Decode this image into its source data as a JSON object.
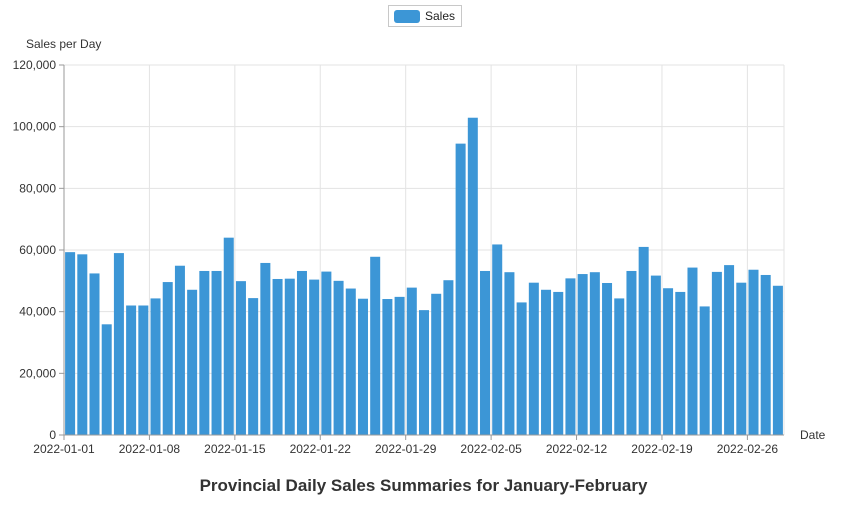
{
  "chart_data": {
    "type": "bar",
    "title": "Provincial Daily Sales Summaries for January-February",
    "xlabel": "Date",
    "ylabel": "Sales per Day",
    "ylim": [
      0,
      120000
    ],
    "yticks": [
      "0",
      "20,000",
      "40,000",
      "60,000",
      "80,000",
      "100,000",
      "120,000"
    ],
    "xticks": [
      "2022-01-01",
      "2022-01-08",
      "2022-01-15",
      "2022-01-22",
      "2022-01-29",
      "2022-02-05",
      "2022-02-12",
      "2022-02-19",
      "2022-02-26"
    ],
    "grid": true,
    "legend_position": "top-center",
    "bar_color": "#3c96d6",
    "categories": [
      "2022-01-01",
      "2022-01-02",
      "2022-01-03",
      "2022-01-04",
      "2022-01-05",
      "2022-01-06",
      "2022-01-07",
      "2022-01-08",
      "2022-01-09",
      "2022-01-10",
      "2022-01-11",
      "2022-01-12",
      "2022-01-13",
      "2022-01-14",
      "2022-01-15",
      "2022-01-16",
      "2022-01-17",
      "2022-01-18",
      "2022-01-19",
      "2022-01-20",
      "2022-01-21",
      "2022-01-22",
      "2022-01-23",
      "2022-01-24",
      "2022-01-25",
      "2022-01-26",
      "2022-01-27",
      "2022-01-28",
      "2022-01-29",
      "2022-01-30",
      "2022-01-31",
      "2022-02-01",
      "2022-02-02",
      "2022-02-03",
      "2022-02-04",
      "2022-02-05",
      "2022-02-06",
      "2022-02-07",
      "2022-02-08",
      "2022-02-09",
      "2022-02-10",
      "2022-02-11",
      "2022-02-12",
      "2022-02-13",
      "2022-02-14",
      "2022-02-15",
      "2022-02-16",
      "2022-02-17",
      "2022-02-18",
      "2022-02-19",
      "2022-02-20",
      "2022-02-21",
      "2022-02-22",
      "2022-02-23",
      "2022-02-24",
      "2022-02-25",
      "2022-02-26",
      "2022-02-27",
      "2022-02-28"
    ],
    "series": [
      {
        "name": "Sales",
        "values": [
          59300,
          58600,
          52400,
          35900,
          59000,
          42000,
          42000,
          44300,
          49600,
          54900,
          47100,
          53200,
          53200,
          64000,
          49900,
          44400,
          55800,
          50600,
          50700,
          53200,
          50400,
          53000,
          50000,
          47500,
          44200,
          57800,
          44100,
          44800,
          47800,
          40500,
          45800,
          50200,
          94500,
          102900,
          53200,
          61800,
          52800,
          43000,
          49400,
          47100,
          46400,
          50800,
          52200,
          52800,
          49300,
          44300,
          53200,
          61000,
          51700,
          47600,
          46400,
          54300,
          41700,
          52900,
          55100,
          49400,
          53600,
          51900,
          48400
        ]
      }
    ]
  }
}
